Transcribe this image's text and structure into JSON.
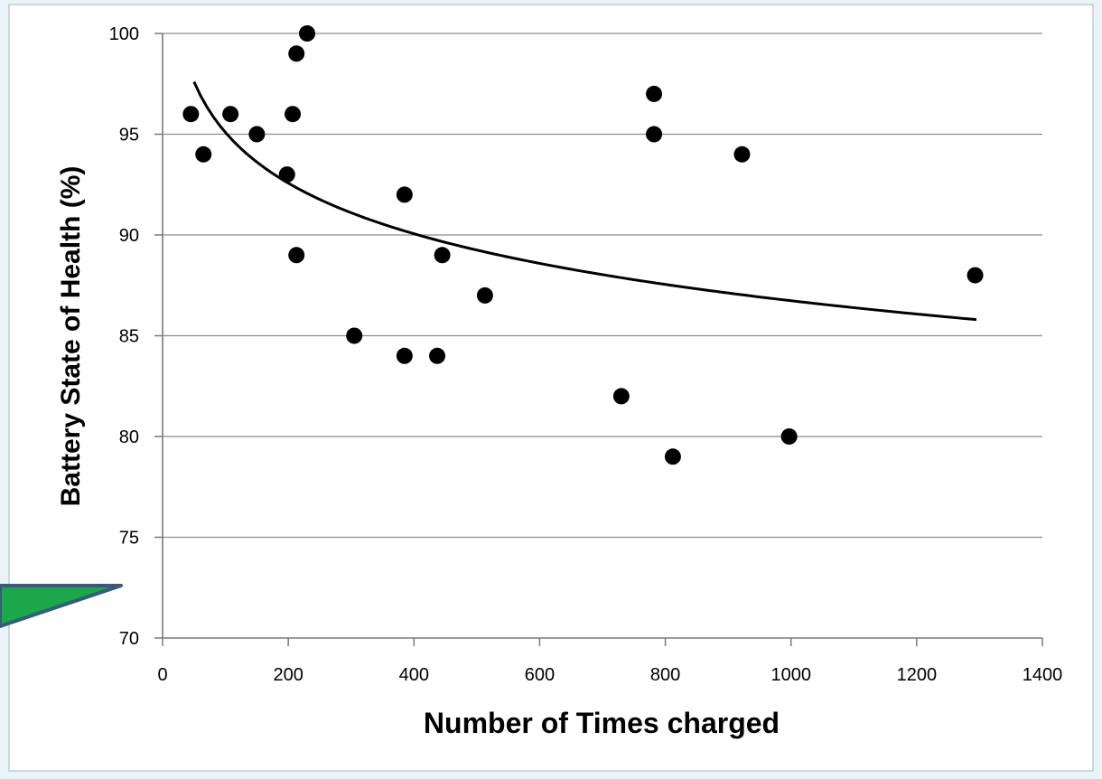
{
  "chart_data": {
    "type": "scatter",
    "xlabel": "Number of Times charged",
    "ylabel": "Battery State of Health (%)",
    "xlim": [
      0,
      1400
    ],
    "ylim": [
      70,
      100
    ],
    "x_ticks": [
      "0",
      "200",
      "400",
      "600",
      "800",
      "1000",
      "1200",
      "1400"
    ],
    "y_ticks": [
      "70",
      "75",
      "80",
      "85",
      "90",
      "95",
      "100"
    ],
    "grid": "horizontal",
    "points": [
      {
        "x": 45,
        "y": 96
      },
      {
        "x": 65,
        "y": 94
      },
      {
        "x": 108,
        "y": 96
      },
      {
        "x": 150,
        "y": 95
      },
      {
        "x": 198,
        "y": 93
      },
      {
        "x": 207,
        "y": 96
      },
      {
        "x": 213,
        "y": 99
      },
      {
        "x": 213,
        "y": 89
      },
      {
        "x": 230,
        "y": 100
      },
      {
        "x": 305,
        "y": 85
      },
      {
        "x": 385,
        "y": 92
      },
      {
        "x": 385,
        "y": 84
      },
      {
        "x": 437,
        "y": 84
      },
      {
        "x": 445,
        "y": 89
      },
      {
        "x": 513,
        "y": 87
      },
      {
        "x": 730,
        "y": 82
      },
      {
        "x": 782,
        "y": 97
      },
      {
        "x": 782,
        "y": 95
      },
      {
        "x": 812,
        "y": 79
      },
      {
        "x": 922,
        "y": 94
      },
      {
        "x": 997,
        "y": 80
      },
      {
        "x": 1293,
        "y": 88
      }
    ],
    "trendline": {
      "type": "logarithmic",
      "x_range": [
        50,
        1295
      ],
      "start_y": 97.6,
      "end_y": 85.8
    },
    "colors": {
      "points": "#000000",
      "trendline": "#000000",
      "grid": "#8c8c8c",
      "arrow_fill": "#1aa84a",
      "arrow_stroke": "#3a5a7a"
    }
  }
}
